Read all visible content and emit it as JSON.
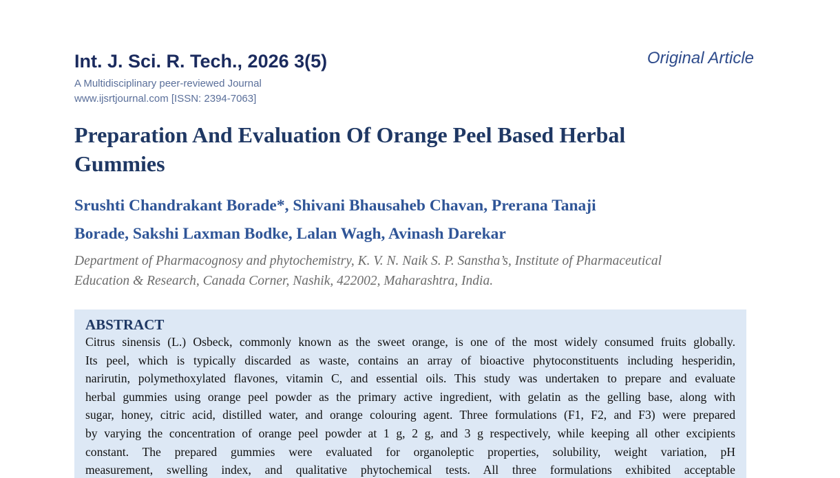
{
  "header": {
    "journal": "Int. J. Sci. R. Tech., 2026 3(5)",
    "tagline": "A Multidisciplinary peer-reviewed Journal",
    "website": "www.ijsrtjournal.com [ISSN: 2394-7063]",
    "article_type": "Original Article"
  },
  "article": {
    "title_lines": [
      "Preparation And Evaluation Of Orange Peel Based Herbal",
      "Gummies"
    ],
    "author_lines": [
      "Srushti Chandrakant Borade*, Shivani Bhausaheb Chavan, Prerana Tanaji",
      "Borade, Sakshi Laxman Bodke, Lalan Wagh, Avinash Darekar"
    ],
    "affiliation_lines": [
      "Department of Pharmacognosy and phytochemistry, K. V. N. Naik S. P. Sanstha’s, Institute of Pharmaceutical",
      "Education & Research, Canada Corner, Nashik, 422002, Maharashtra, India."
    ]
  },
  "abstract": {
    "heading": "ABSTRACT",
    "lines": [
      "Citrus sinensis (L.) Osbeck, commonly known as the sweet orange, is one of the most widely consumed fruits globally.",
      "Its peel, which is typically discarded as waste, contains an array of bioactive phytoconstituents including hesperidin,",
      "narirutin, polymethoxylated flavones, vitamin C, and essential oils. This study was undertaken to prepare and evaluate",
      "herbal gummies using orange peel powder as the primary active ingredient, with gelatin as the gelling base, along with",
      "sugar, honey, citric acid, distilled water, and orange colouring agent. Three formulations (F1, F2, and F3) were prepared",
      "by varying the concentration of orange peel powder at 1 g, 2 g, and 3 g respectively, while keeping all other excipients",
      "constant. The prepared gummies were evaluated for organoleptic properties, solubility, weight variation, pH",
      "measurement, swelling index, and qualitative phytochemical tests. All three formulations exhibited acceptable"
    ]
  }
}
